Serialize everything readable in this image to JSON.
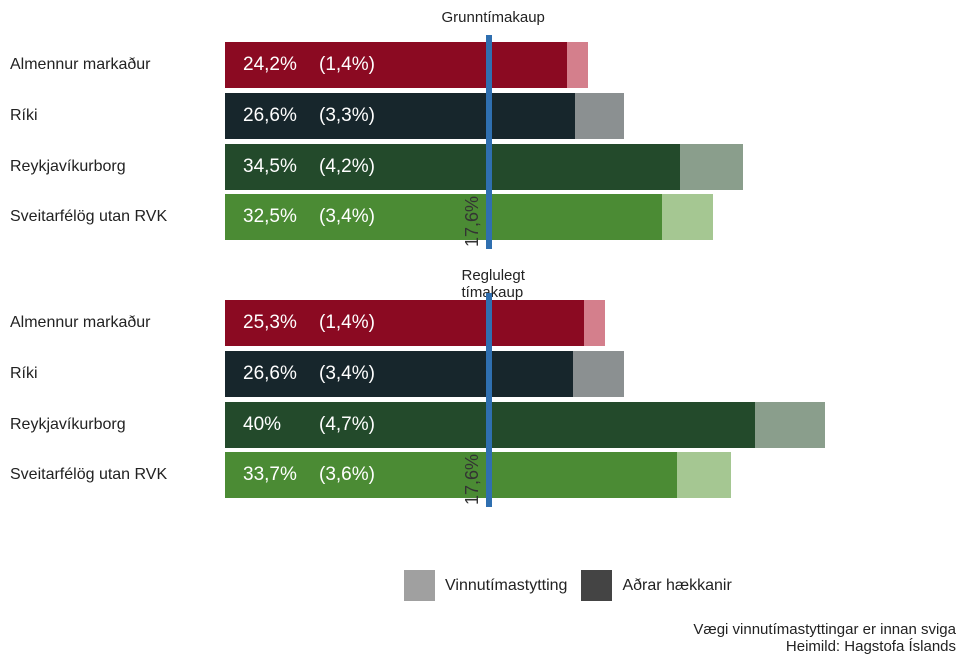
{
  "chart_data": {
    "type": "bar",
    "orientation": "horizontal",
    "stacked": true,
    "reference_value": 17.6,
    "reference_label": "17,6%",
    "xlim": [
      0,
      46
    ],
    "panels": [
      {
        "title": "Grunntímakaup",
        "categories": [
          "Almennur markaður",
          "Ríki",
          "Reykjavíkurborg",
          "Sveitarfélög utan RVK"
        ],
        "total_labels": [
          "24,2%",
          "26,6%",
          "34,5%",
          "32,5%"
        ],
        "share_labels": [
          "(1,4%)",
          "(3,3%)",
          "(4,2%)",
          "(3,4%)"
        ],
        "series": [
          {
            "name": "Aðrar hækkanir",
            "values": [
              22.8,
              23.3,
              30.3,
              29.1
            ]
          },
          {
            "name": "Vinnutímastytting",
            "values": [
              1.4,
              3.3,
              4.2,
              3.4
            ]
          }
        ]
      },
      {
        "title": "Reglulegt tímakaup",
        "categories": [
          "Almennur markaður",
          "Ríki",
          "Reykjavíkurborg",
          "Sveitarfélög utan RVK"
        ],
        "total_labels": [
          "25,3%",
          "26,6%",
          "40%",
          "33,7%"
        ],
        "share_labels": [
          "(1,4%)",
          "(3,4%)",
          "(4,7%)",
          "(3,6%)"
        ],
        "series": [
          {
            "name": "Aðrar hækkanir",
            "values": [
              23.9,
              23.2,
              35.3,
              30.1
            ]
          },
          {
            "name": "Vinnutímastytting",
            "values": [
              1.4,
              3.4,
              4.7,
              3.6
            ]
          }
        ]
      }
    ],
    "colors": {
      "main": [
        "#8b0a22",
        "#17262c",
        "#234a2b",
        "#4b8b34"
      ],
      "shortening": [
        "#d47f8c",
        "#8b9091",
        "#8a9e8c",
        "#a5c792"
      ]
    },
    "legend": {
      "position": "bottom",
      "items": [
        {
          "label": "Vinnutímastytting",
          "color": "#a0a0a0"
        },
        {
          "label": "Aðrar hækkanir",
          "color": "#444444"
        }
      ]
    },
    "caption_lines": [
      "Vægi vinnutímastyttingar er innan sviga",
      "Heimild: Hagstofa Íslands"
    ]
  }
}
